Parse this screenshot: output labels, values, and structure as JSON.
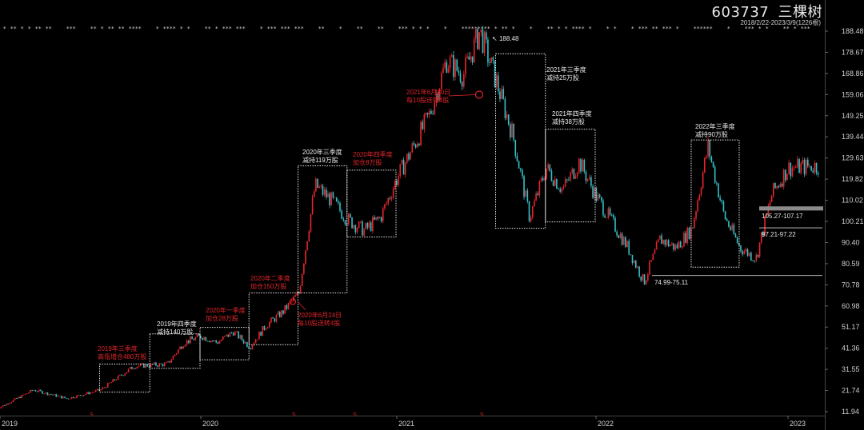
{
  "header": {
    "stock_code": "603737",
    "stock_name": "三棵树",
    "range_text": "2018/2/22-2023/3/9(1226根)"
  },
  "colors": {
    "background": "#000000",
    "up": "#e8252b",
    "down": "#36c1c8",
    "box": "#e6e6e6",
    "annotation_red": "#e0242a",
    "annotation_white": "#ececec",
    "gray_bar": "#8a8a8a"
  },
  "annotations": {
    "q3_2019": [
      "2019年三季度",
      "高瓴增仓480万股"
    ],
    "q4_2019": [
      "2019年四季度",
      "减持140万股"
    ],
    "q1_2020": [
      "2020年一季度",
      "加仓28万股"
    ],
    "q2_2020": [
      "2020年二季度",
      "加仓150万股"
    ],
    "q2_2020_dividend": [
      "2020年6月24日",
      "每10股送转4股"
    ],
    "q3_2020": [
      "2020年三季度",
      "减持119万股"
    ],
    "q4_2020": [
      "2020年四季度",
      "加仓8万股"
    ],
    "dividend_2021": [
      "2021年6月10日",
      "每10股送转4股"
    ],
    "q3_2021": [
      "2021年三季度",
      "减持25万股"
    ],
    "q4_2021": [
      "2021年四季度",
      "减持38万股"
    ],
    "q3_2022": [
      "2022年三季度",
      "减持90万股"
    ]
  },
  "levels": {
    "peak": "188.48",
    "level_1": "105.27-107.17",
    "level_2": "97.21-97.22",
    "level_3": "74.99-75.11"
  },
  "chart_data": {
    "type": "candlestick",
    "title": "603737 三棵树",
    "subtitle": "2018/2/22-2023/3/9(1226根)",
    "x_ticks": [
      "2019",
      "2020",
      "2021",
      "2022",
      "2023"
    ],
    "y_ticks": [
      11.94,
      21.74,
      31.55,
      41.36,
      51.17,
      60.98,
      70.78,
      80.59,
      90.4,
      100.21,
      110.02,
      119.82,
      129.63,
      139.44,
      149.25,
      159.06,
      168.86,
      178.67,
      188.48
    ],
    "ylim": [
      10.0,
      192.5
    ],
    "y_scale": "linear",
    "price_path": [
      [
        "2018-11",
        13
      ],
      [
        "2019-01",
        14
      ],
      [
        "2019-03",
        22
      ],
      [
        "2019-05",
        18
      ],
      [
        "2019-07",
        22
      ],
      [
        "2019-09",
        33
      ],
      [
        "2019-11",
        34
      ],
      [
        "2019-12",
        44
      ],
      [
        "2020-01",
        47
      ],
      [
        "2020-02",
        44
      ],
      [
        "2020-03",
        49
      ],
      [
        "2020-04",
        42
      ],
      [
        "2020-05",
        52
      ],
      [
        "2020-06",
        58
      ],
      [
        "2020-07",
        67
      ],
      [
        "2020-08",
        117
      ],
      [
        "2020-09",
        110
      ],
      [
        "2020-10",
        101
      ],
      [
        "2020-11",
        96
      ],
      [
        "2020-12",
        102
      ],
      [
        "2021-01",
        120
      ],
      [
        "2021-02",
        135
      ],
      [
        "2021-03",
        150
      ],
      [
        "2021-04",
        175
      ],
      [
        "2021-05",
        168
      ],
      [
        "2021-06",
        188.48
      ],
      [
        "2021-07",
        165
      ],
      [
        "2021-08",
        140
      ],
      [
        "2021-09",
        102
      ],
      [
        "2021-10",
        125
      ],
      [
        "2021-11",
        115
      ],
      [
        "2021-12",
        128
      ],
      [
        "2022-01",
        112
      ],
      [
        "2022-03",
        88
      ],
      [
        "2022-04",
        72
      ],
      [
        "2022-05",
        92
      ],
      [
        "2022-06",
        88
      ],
      [
        "2022-07",
        97
      ],
      [
        "2022-08",
        135
      ],
      [
        "2022-09",
        103
      ],
      [
        "2022-10",
        88
      ],
      [
        "2022-11",
        83
      ],
      [
        "2022-12",
        113
      ],
      [
        "2023-01",
        125
      ],
      [
        "2023-03",
        126
      ]
    ],
    "highlight_boxes": [
      {
        "label": "2019年三季度 高瓴增仓480万股",
        "from": "2019-07",
        "to": "2019-09",
        "low": 21,
        "high": 34
      },
      {
        "label": "2019年四季度 减持140万股",
        "from": "2019-10",
        "to": "2019-12",
        "low": 32,
        "high": 48
      },
      {
        "label": "2020年一季度 加仓28万股",
        "from": "2020-01",
        "to": "2020-03",
        "low": 36,
        "high": 51
      },
      {
        "label": "2020年二季度 加仓150万股",
        "from": "2020-04",
        "to": "2020-06",
        "low": 43,
        "high": 67
      },
      {
        "label": "2020年三季度 减持119万股",
        "from": "2020-07",
        "to": "2020-09",
        "low": 67,
        "high": 126
      },
      {
        "label": "2020年四季度 加仓8万股",
        "from": "2020-10",
        "to": "2020-12",
        "low": 93,
        "high": 124
      },
      {
        "label": "2021年三季度 减持25万股",
        "from": "2021-07",
        "to": "2021-09",
        "low": 97,
        "high": 178
      },
      {
        "label": "2021年四季度 减持38万股",
        "from": "2021-10",
        "to": "2021-12",
        "low": 100,
        "high": 143
      },
      {
        "label": "2022年三季度 减持90万股",
        "from": "2022-07",
        "to": "2022-09",
        "low": 79,
        "high": 138
      }
    ],
    "price_levels": [
      {
        "label": "105.27-107.17",
        "low": 105.27,
        "high": 107.17
      },
      {
        "label": "97.21-97.22",
        "low": 97.21,
        "high": 97.22
      },
      {
        "label": "74.99-75.11",
        "low": 74.99,
        "high": 75.11
      }
    ],
    "peak_price": 188.48,
    "grid": false
  }
}
